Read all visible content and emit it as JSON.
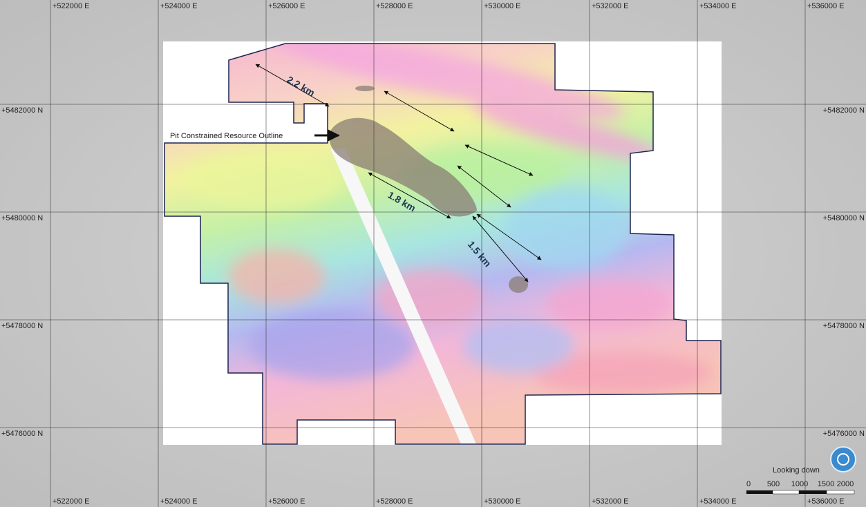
{
  "grid": {
    "eastings": [
      "+522000 E",
      "+524000 E",
      "+526000 E",
      "+528000 E",
      "+530000 E",
      "+532000 E",
      "+534000 E",
      "+536000 E"
    ],
    "northings": [
      "+5482000 N",
      "+5480000 N",
      "+5478000 N",
      "+5476000 N"
    ]
  },
  "annotations": {
    "resource_outline": "Pit Constrained Resource Outline",
    "distances": [
      "2.2 km",
      "1.8 km",
      "1.5 km"
    ]
  },
  "view": {
    "mode": "Looking down"
  },
  "scale_bar": {
    "labels": [
      "0",
      "500",
      "1000",
      "1500",
      "2000"
    ]
  }
}
